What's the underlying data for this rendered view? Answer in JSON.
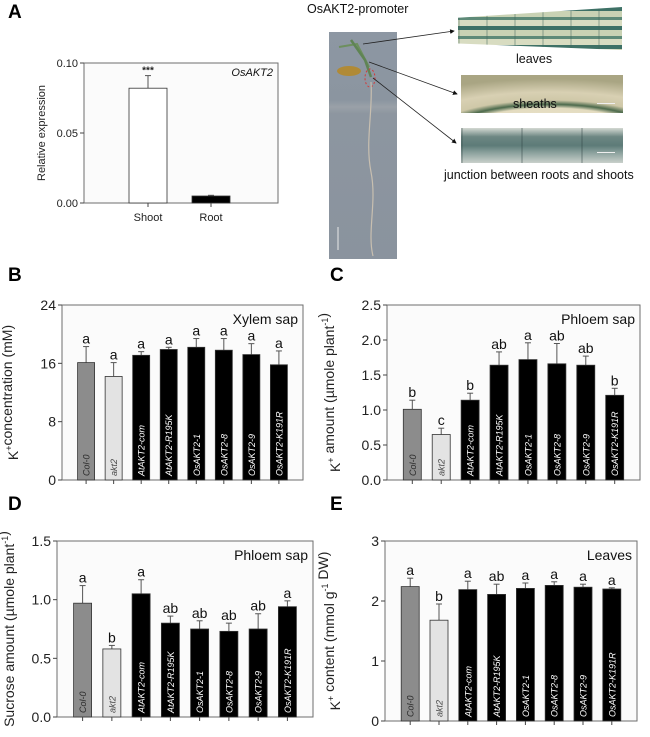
{
  "figure": {
    "panel_labels": [
      "A",
      "B",
      "C",
      "D",
      "E"
    ],
    "promoter_panel": {
      "title": "OsAKT2-promoter",
      "captions": [
        "leaves",
        "sheaths",
        "junction between roots and shoots"
      ]
    }
  },
  "chart_data": [
    {
      "id": "A",
      "type": "bar",
      "title": "OsAKT2",
      "xlabel": "",
      "ylabel": "Relative expression",
      "ylim": [
        0,
        0.1
      ],
      "yticks": [
        "0.00",
        "0.05",
        "0.10"
      ],
      "ytick_values": [
        0,
        0.05,
        0.1
      ],
      "categories": [
        "Shoot",
        "Root"
      ],
      "values": [
        0.082,
        0.005
      ],
      "errors": [
        0.009,
        0.0005
      ],
      "bar_colors": [
        "#ffffff",
        "#000000"
      ],
      "annotations": [
        "***",
        ""
      ],
      "grid": false
    },
    {
      "id": "B",
      "type": "bar",
      "title": "Xylem sap",
      "xlabel": "",
      "ylabel": "K+ concentration (mM)",
      "ylabel_parts": {
        "pre": "K",
        "sup": "+",
        "post": "concentration (mM)"
      },
      "ylim": [
        0,
        24
      ],
      "yticks": [
        "0",
        "8",
        "16",
        "24"
      ],
      "ytick_values": [
        0,
        8,
        16,
        24
      ],
      "categories": [
        "Col-0",
        "akt2",
        "AtAKT2-com",
        "AtAKT2-R195K",
        "OsAKT2-1",
        "OsAKT2-8",
        "OsAKT2-9",
        "OsAKT2-K191R"
      ],
      "values": [
        16.1,
        14.2,
        17.1,
        17.9,
        18.2,
        17.8,
        17.2,
        15.8
      ],
      "errors": [
        2.2,
        1.9,
        0.5,
        0.3,
        1.2,
        1.6,
        1.5,
        1.9
      ],
      "letters": [
        "a",
        "a",
        "a",
        "a",
        "a",
        "a",
        "a",
        "a"
      ],
      "grid": false
    },
    {
      "id": "C",
      "type": "bar",
      "title": "Phloem sap",
      "xlabel": "",
      "ylabel": "K+ amount (µmole plant-1)",
      "ylabel_parts": {
        "pre": "K",
        "sup": "+",
        "post": " amount  (µmole plant",
        "sup2": "-1",
        "end": ")"
      },
      "ylim": [
        0,
        2.5
      ],
      "yticks": [
        "0.0",
        "0.5",
        "1.0",
        "1.5",
        "2.0",
        "2.5"
      ],
      "ytick_values": [
        0,
        0.5,
        1.0,
        1.5,
        2.0,
        2.5
      ],
      "categories": [
        "Col-0",
        "akt2",
        "AtAKT2-com",
        "AtAKT2-R195K",
        "OsAKT2-1",
        "OsAKT2-8",
        "OsAKT2-9",
        "OsAKT2-K191R"
      ],
      "values": [
        1.01,
        0.65,
        1.14,
        1.64,
        1.72,
        1.66,
        1.64,
        1.21
      ],
      "errors": [
        0.13,
        0.09,
        0.1,
        0.19,
        0.24,
        0.29,
        0.13,
        0.1
      ],
      "letters": [
        "b",
        "c",
        "b",
        "ab",
        "a",
        "ab",
        "ab",
        "b"
      ],
      "grid": false
    },
    {
      "id": "D",
      "type": "bar",
      "title": "Phloem sap",
      "xlabel": "",
      "ylabel": "Sucrose amount (µmole plant-1)",
      "ylabel_parts": {
        "pre": "Sucrose amount (µmole plant",
        "sup": "-1",
        "post": ")"
      },
      "ylim": [
        0,
        1.5
      ],
      "yticks": [
        "0.0",
        "0.5",
        "1.0",
        "1.5"
      ],
      "ytick_values": [
        0,
        0.5,
        1.0,
        1.5
      ],
      "categories": [
        "Col-0",
        "akt2",
        "AtAKT2-com",
        "AtAKT2-R195K",
        "OsAKT2-1",
        "OsAKT2-8",
        "OsAKT2-9",
        "OsAKT2-K191R"
      ],
      "values": [
        0.97,
        0.58,
        1.05,
        0.8,
        0.75,
        0.73,
        0.75,
        0.94
      ],
      "errors": [
        0.15,
        0.03,
        0.12,
        0.06,
        0.07,
        0.07,
        0.13,
        0.05
      ],
      "letters": [
        "a",
        "b",
        "a",
        "ab",
        "ab",
        "ab",
        "ab",
        "a"
      ],
      "grid": false
    },
    {
      "id": "E",
      "type": "bar",
      "title": "Leaves",
      "xlabel": "",
      "ylabel": "K+ content (mmol g-1 DW)",
      "ylabel_parts": {
        "pre": "K",
        "sup": "+",
        "post": " content (mmol g",
        "sup2": "-1",
        "end": " DW)"
      },
      "ylim": [
        0,
        3
      ],
      "yticks": [
        "0",
        "1",
        "2",
        "3"
      ],
      "ytick_values": [
        0,
        1,
        2,
        3
      ],
      "categories": [
        "Col-0",
        "akt2",
        "AtAKT2-com",
        "AtAKT2-R195K",
        "OsAKT2-1",
        "OsAKT2-8",
        "OsAKT2-9",
        "OsAKT2-K191R"
      ],
      "values": [
        2.24,
        1.68,
        2.19,
        2.11,
        2.21,
        2.26,
        2.23,
        2.2
      ],
      "errors": [
        0.14,
        0.27,
        0.14,
        0.17,
        0.09,
        0.06,
        0.05,
        0.02
      ],
      "letters": [
        "a",
        "b",
        "a",
        "ab",
        "a",
        "a",
        "a",
        "a"
      ],
      "grid": false
    }
  ],
  "bar_color_scheme": {
    "Col-0": "#8c8c8c",
    "akt2": "#e3e3e3",
    "transgenic": "#000000",
    "Col-0_label_color": "#2a2a2a",
    "akt2_label_color": "#4a4a4a",
    "transgenic_label_color": "#ffffff"
  }
}
